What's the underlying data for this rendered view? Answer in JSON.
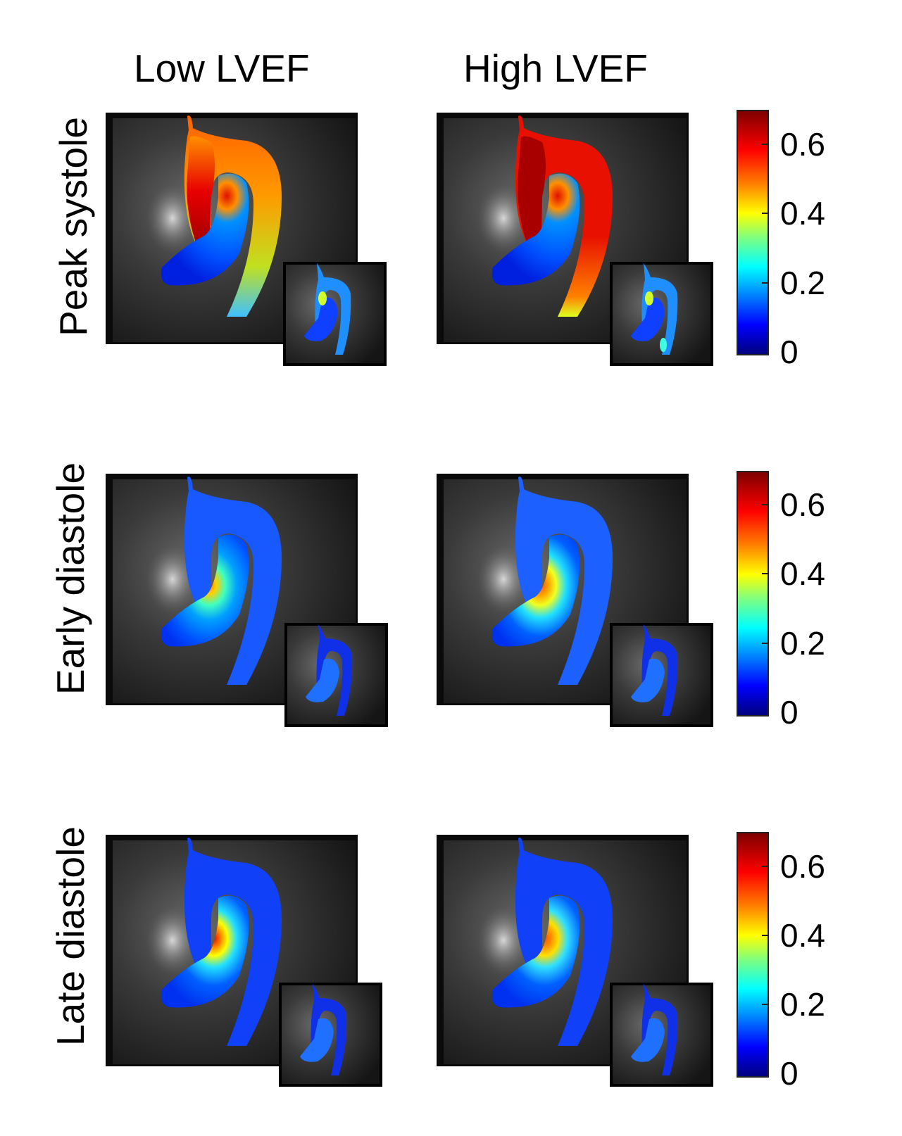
{
  "columns": {
    "low": "Low LVEF",
    "high": "High LVEF"
  },
  "rows": {
    "peak": "Peak systole",
    "early": "Early diastole",
    "late": "Late diastole"
  },
  "colorbar": {
    "ticks": [
      "0.6",
      "0.4",
      "0.2",
      "0"
    ],
    "colormap": [
      "#00007f",
      "#0000ff",
      "#0080ff",
      "#00ffff",
      "#7fff7f",
      "#ffff00",
      "#ff8000",
      "#ff0000",
      "#7f0000"
    ]
  }
}
